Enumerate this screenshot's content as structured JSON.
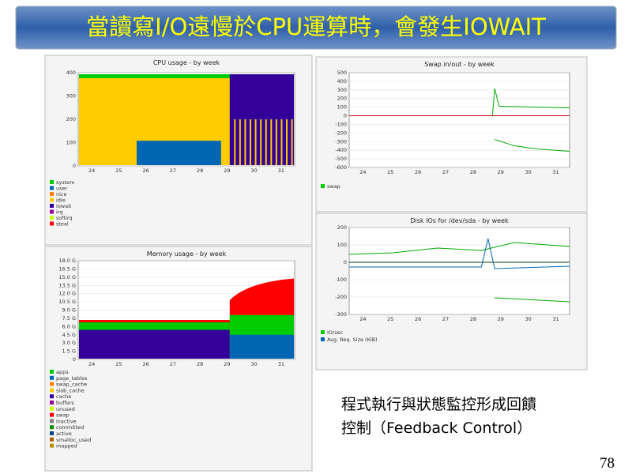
{
  "title": "當讀寫I/O遠慢於CPU運算時，會發生IOWAIT",
  "panels": [
    {
      "title": "CPU usage - by week",
      "yticks": [
        "400",
        "300",
        "200",
        "100",
        "0"
      ],
      "xticks": [
        "24",
        "25",
        "26",
        "27",
        "28",
        "29",
        "30",
        "31"
      ],
      "legend": [
        "system",
        "user",
        "nice",
        "idle",
        "iowait",
        "irq",
        "softirq",
        "steal"
      ],
      "colors": [
        "#00cc00",
        "#0066b3",
        "#ff8000",
        "#ffcc00",
        "#330099",
        "#990099",
        "#ccff00",
        "#ff0000"
      ]
    },
    {
      "title": "Memory usage - by week",
      "yticks": [
        "18.0 G",
        "16.5 G",
        "15.0 G",
        "13.5 G",
        "12.0 G",
        "10.5 G",
        "9.0 G",
        "7.5 G",
        "6.0 G",
        "4.5 G",
        "3.0 G",
        "1.5 G",
        "0"
      ],
      "xticks": [
        "24",
        "25",
        "26",
        "27",
        "28",
        "29",
        "30",
        "31"
      ],
      "legend": [
        "apps",
        "page_tables",
        "swap_cache",
        "slab_cache",
        "cache",
        "buffers",
        "unused",
        "swap",
        "inactive",
        "committed",
        "active",
        "vmalloc_used",
        "mapped"
      ],
      "colors": [
        "#00cc00",
        "#0066b3",
        "#ff8000",
        "#ffcc00",
        "#330099",
        "#990099",
        "#ccff00",
        "#ff0000",
        "#808080",
        "#008f00",
        "#00487d",
        "#b35a00",
        "#b38f00"
      ]
    },
    {
      "title": "Swap in/out - by week",
      "yticks": [
        "500",
        "400",
        "300",
        "200",
        "100",
        "0",
        "-100",
        "-200",
        "-300",
        "-400",
        "-500",
        "-600"
      ],
      "xticks": [
        "24",
        "25",
        "26",
        "27",
        "28",
        "29",
        "30",
        "31"
      ],
      "legend": [
        "swap"
      ],
      "colors": [
        "#00cc00"
      ]
    },
    {
      "title": "Disk IOs for /dev/sda - by week",
      "yticks": [
        "200",
        "100",
        "0",
        "-100",
        "-200",
        "-300"
      ],
      "xticks": [
        "24",
        "25",
        "26",
        "27",
        "28",
        "29",
        "30",
        "31"
      ],
      "legend": [
        "IO/sec",
        "Avg. Req. Size (KiB)"
      ],
      "colors": [
        "#00cc00",
        "#0066b3"
      ]
    }
  ],
  "caption": [
    "程式執行與狀態監控形成回饋",
    "控制（Feedback Control）"
  ],
  "page_number": "78"
}
